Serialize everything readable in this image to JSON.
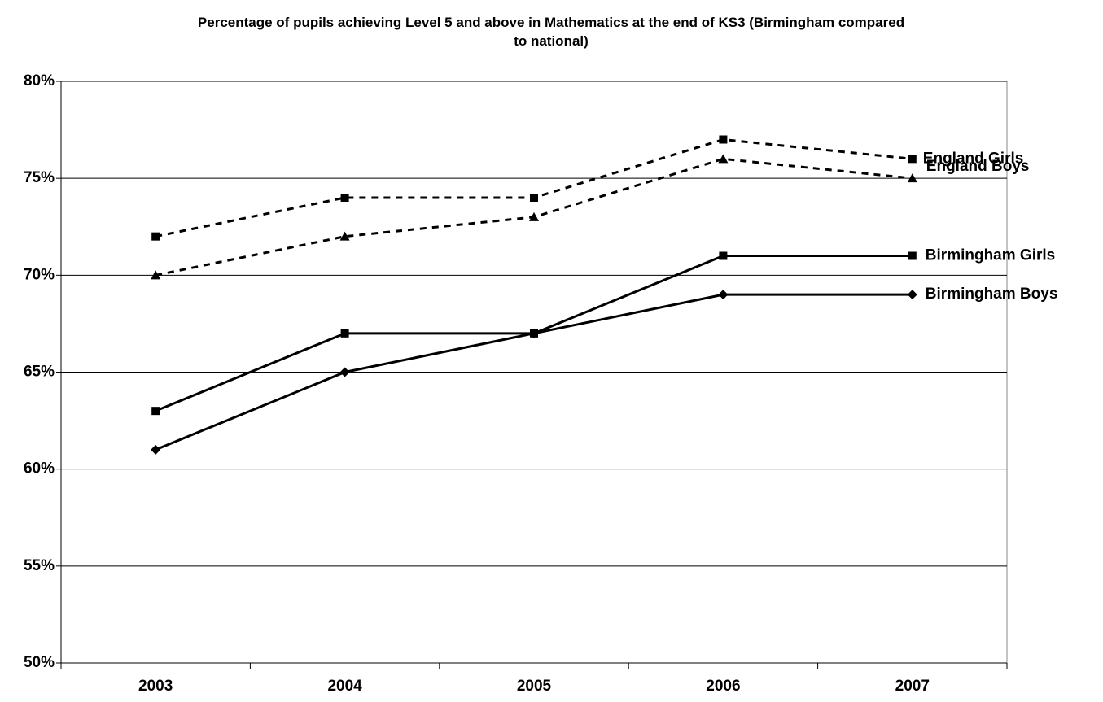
{
  "chart_data": {
    "type": "line",
    "title": "Percentage of pupils achieving Level 5 and above in Mathematics at the end of KS3 (Birmingham compared to national)",
    "categories": [
      "2003",
      "2004",
      "2005",
      "2006",
      "2007"
    ],
    "series": [
      {
        "name": "England Girls",
        "color": "#000000",
        "dashed": true,
        "marker": "square",
        "values": [
          72,
          74,
          74,
          77,
          76
        ]
      },
      {
        "name": "England Boys",
        "color": "#000000",
        "dashed": true,
        "marker": "triangle",
        "values": [
          70,
          72,
          73,
          76,
          75
        ]
      },
      {
        "name": "Birmingham Girls",
        "color": "#000000",
        "dashed": false,
        "marker": "square",
        "values": [
          63,
          67,
          67,
          71,
          71
        ]
      },
      {
        "name": "Birmingham Boys",
        "color": "#000000",
        "dashed": false,
        "marker": "diamond",
        "values": [
          61,
          65,
          67,
          69,
          69
        ]
      }
    ],
    "ylim": [
      50,
      80
    ],
    "yticks": [
      {
        "value": 50,
        "label": "50%"
      },
      {
        "value": 55,
        "label": "55%"
      },
      {
        "value": 60,
        "label": "60%"
      },
      {
        "value": 65,
        "label": "65%"
      },
      {
        "value": 70,
        "label": "70%"
      },
      {
        "value": 75,
        "label": "75%"
      },
      {
        "value": 80,
        "label": "80%"
      }
    ],
    "grid": true
  }
}
